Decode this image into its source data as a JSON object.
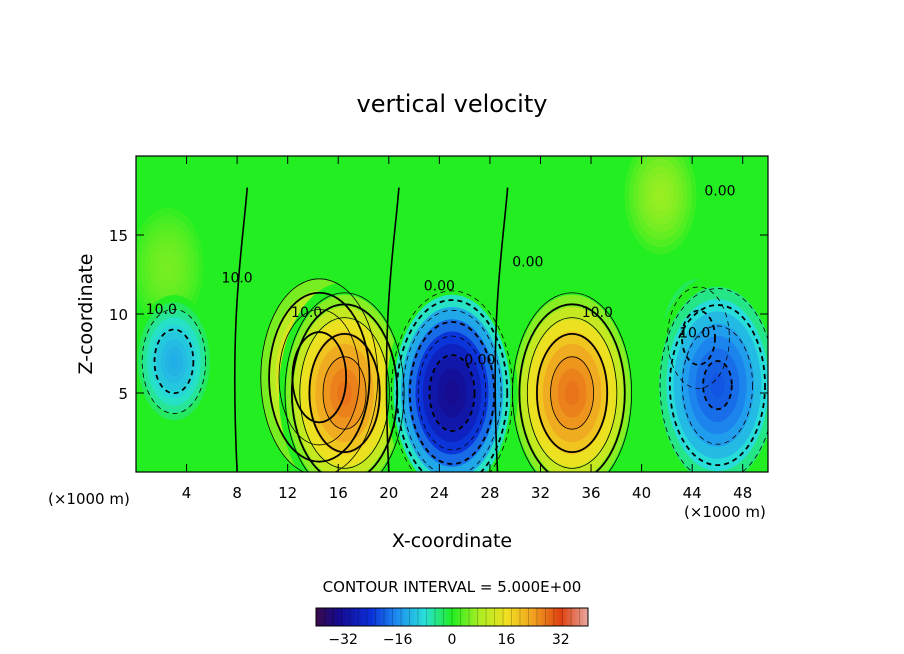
{
  "chart_data": {
    "type": "heatmap",
    "title": "vertical velocity",
    "xlabel": "X-coordinate",
    "ylabel": "Z-coordinate",
    "x_unit_left": "(×1000 m)",
    "x_unit_right": "(×1000 m)",
    "xlim": [
      0,
      50
    ],
    "ylim": [
      0,
      20
    ],
    "x_ticks": [
      4,
      8,
      12,
      16,
      20,
      24,
      28,
      32,
      36,
      40,
      44,
      48
    ],
    "y_ticks": [
      5,
      10,
      15
    ],
    "contour_interval_label": "CONTOUR INTERVAL = 5.000E+00",
    "contour_labels": [
      "10.0",
      "0.00",
      "10.0",
      "0.00",
      "10.0",
      "10.0",
      "10.0",
      "0.00",
      "0.00"
    ],
    "colorbar": {
      "range": [
        -40,
        40
      ],
      "ticks": [
        -32,
        -16,
        0,
        16,
        32
      ],
      "tick_labels": [
        "−32",
        "−16",
        "0",
        "16",
        "32"
      ]
    },
    "cells": [
      {
        "x": 3,
        "z": 7,
        "w": -13
      },
      {
        "x": 14.5,
        "z": 6,
        "w": 24
      },
      {
        "x": 16.5,
        "z": 5,
        "w": 28
      },
      {
        "x": 25,
        "z": 5,
        "w": -34
      },
      {
        "x": 34.5,
        "z": 5,
        "w": 28
      },
      {
        "x": 46,
        "z": 5.5,
        "w": -21
      },
      {
        "x": 44.5,
        "z": 8.5,
        "w": -12
      },
      {
        "x": 41.5,
        "z": 17.5,
        "w": 7
      },
      {
        "x": 2.5,
        "z": 13,
        "w": 5
      }
    ]
  }
}
